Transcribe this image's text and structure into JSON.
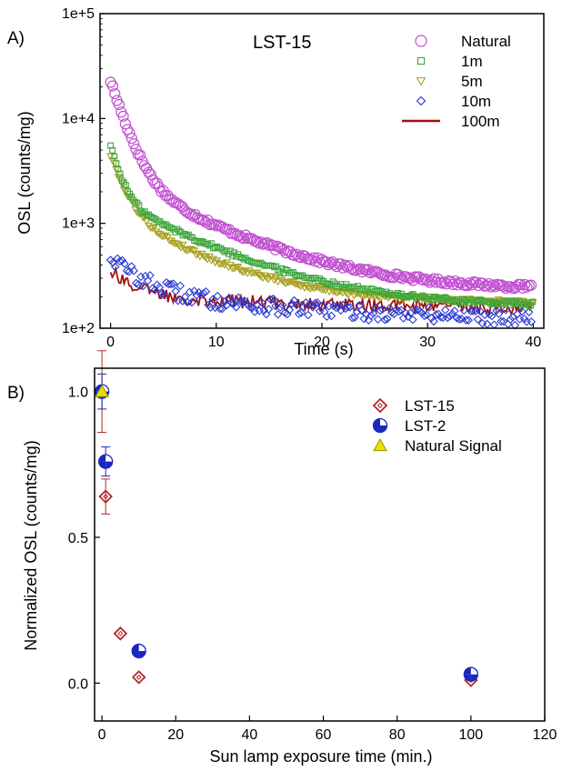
{
  "colors": {
    "natural": "#c24fd1",
    "m1": "#3aa63a",
    "m5": "#a8a020",
    "m10": "#2a3ad0",
    "m100": "#a01010",
    "lst15": "#b02a2a",
    "lst2": "#1a26c0",
    "natural_signal_fill": "#e8e000",
    "natural_signal_edge": "#a09000"
  },
  "chart_data": [
    {
      "type": "scatter",
      "panel_label": "A)",
      "annotation": "LST-15",
      "xlabel": "Time (s)",
      "ylabel": "OSL (counts/mg)",
      "xlim": [
        -1,
        41
      ],
      "ylim": [
        100,
        100000
      ],
      "yscale": "log",
      "xticks": [
        0,
        10,
        20,
        30,
        40
      ],
      "xtick_labels": [
        "0",
        "10",
        "20",
        "30",
        "40"
      ],
      "yticks": [
        100,
        1000,
        10000,
        100000
      ],
      "ytick_labels": [
        "1e+2",
        "1e+3",
        "1e+4",
        "1e+5"
      ],
      "grid": false,
      "legend_position": "top-right",
      "series": [
        {
          "name": "Natural",
          "marker": "circle",
          "a1": 20000,
          "tau1": 1.3,
          "a2": 2500,
          "tau2": 8.0,
          "base": 230,
          "x": [
            0,
            0.4,
            0.8,
            1.2,
            1.6,
            2,
            2.5,
            3,
            3.5,
            4,
            5,
            6,
            7,
            8,
            10,
            12,
            15,
            20,
            25,
            30,
            35,
            40
          ],
          "values": [
            22000,
            15000,
            11000,
            8200,
            6400,
            5100,
            4000,
            3300,
            2800,
            2400,
            1800,
            1400,
            1100,
            900,
            650,
            500,
            400,
            300,
            270,
            255,
            240,
            220
          ]
        },
        {
          "name": "1m",
          "marker": "square",
          "a1": 4000,
          "tau1": 0.9,
          "a2": 1500,
          "tau2": 8.0,
          "base": 160,
          "x": [
            0,
            0.4,
            0.8,
            1.2,
            1.6,
            2,
            2.5,
            3,
            3.5,
            4,
            5,
            6,
            7,
            8,
            10,
            12,
            15,
            20,
            25,
            30,
            35,
            40
          ],
          "values": [
            5800,
            4200,
            3200,
            2600,
            2200,
            1900,
            1650,
            1450,
            1300,
            1150,
            950,
            800,
            680,
            600,
            450,
            370,
            300,
            240,
            200,
            180,
            170,
            160
          ]
        },
        {
          "name": "5m",
          "marker": "triangle-down",
          "a1": 3200,
          "tau1": 1.2,
          "a2": 1100,
          "tau2": 7.0,
          "base": 175,
          "x": [
            0,
            0.4,
            0.8,
            1.2,
            1.6,
            2,
            2.5,
            3,
            3.5,
            4,
            5,
            6,
            7,
            8,
            10,
            12,
            15,
            20,
            25,
            30,
            35,
            40
          ],
          "values": [
            4500,
            3500,
            2800,
            2300,
            1950,
            1650,
            1350,
            1150,
            1000,
            870,
            700,
            580,
            500,
            440,
            360,
            310,
            270,
            230,
            210,
            200,
            195,
            190
          ]
        },
        {
          "name": "10m",
          "marker": "diamond",
          "a1": 230,
          "tau1": 2.5,
          "a2": 130,
          "tau2": 12,
          "base": 125,
          "x": [
            0,
            0.5,
            1,
            2,
            3,
            4,
            5,
            6,
            8,
            10,
            12,
            15,
            18,
            20,
            25,
            30,
            35,
            40
          ],
          "values": [
            560,
            490,
            430,
            350,
            300,
            270,
            250,
            235,
            210,
            195,
            185,
            175,
            165,
            160,
            150,
            140,
            135,
            125
          ]
        },
        {
          "name": "100m",
          "marker": "line",
          "a1": 150,
          "tau1": 2.0,
          "a2": 60,
          "tau2": 15,
          "base": 155,
          "x": [
            0,
            0.5,
            1,
            2,
            3,
            4,
            5,
            6,
            8,
            10,
            12,
            15,
            18,
            20,
            25,
            30,
            35,
            40
          ],
          "values": [
            400,
            360,
            320,
            270,
            240,
            220,
            210,
            200,
            190,
            185,
            180,
            175,
            170,
            168,
            165,
            160,
            158,
            155
          ]
        }
      ]
    },
    {
      "type": "scatter",
      "panel_label": "B)",
      "xlabel": "Sun lamp exposure time (min.)",
      "ylabel": "Normalized OSL (counts/mg)",
      "xlim": [
        -2,
        120
      ],
      "ylim": [
        -0.13,
        1.08
      ],
      "xticks": [
        0,
        20,
        40,
        60,
        80,
        100,
        120
      ],
      "xtick_labels": [
        "0",
        "20",
        "40",
        "60",
        "80",
        "100",
        "120"
      ],
      "yticks": [
        0,
        0.5,
        1
      ],
      "ytick_labels": [
        "0.0",
        "0.5",
        "1.0"
      ],
      "grid": false,
      "legend_position": "top-right",
      "series": [
        {
          "name": "LST-15",
          "marker": "diamond-open",
          "x": [
            0,
            1,
            5,
            10,
            100
          ],
          "values": [
            1.0,
            0.64,
            0.17,
            0.02,
            0.01
          ],
          "errors": [
            0.14,
            0.06,
            0.0,
            0.0,
            0.0
          ]
        },
        {
          "name": "LST-2",
          "marker": "circle-half",
          "x": [
            0,
            1,
            10,
            100
          ],
          "values": [
            1.0,
            0.76,
            0.11,
            0.03
          ],
          "errors": [
            0.06,
            0.05,
            0.0,
            0.0
          ]
        },
        {
          "name": "Natural Signal",
          "marker": "triangle-up",
          "x": [
            0
          ],
          "values": [
            1.0
          ],
          "errors": [
            0.0
          ]
        }
      ]
    }
  ]
}
